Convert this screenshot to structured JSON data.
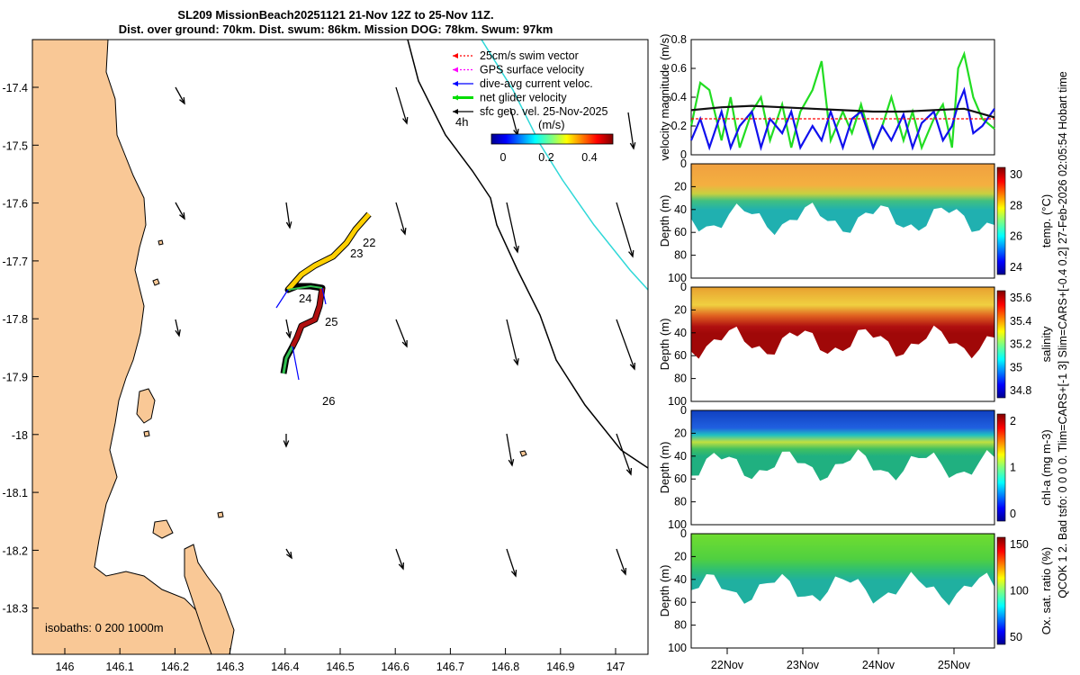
{
  "title": {
    "line1": "SL209 MissionBeach20251121 21-Nov 12Z to 25-Nov 11Z.",
    "line2": "Dist. over ground: 70km. Dist. swum: 86km. Mission DOG: 78km. Swum: 97km"
  },
  "side_note": "QCOK 1  2. Bad tsfo: 0  0  0  0. Tlim=CARS+[-1 3] Slim=CARS+[-0.4 0.2] 27-Feb-2026 02:05:54 Hobart time",
  "map": {
    "x_ticks": [
      "146",
      "146.1",
      "146.2",
      "146.3",
      "146.4",
      "146.5",
      "146.6",
      "146.7",
      "146.8",
      "146.9",
      "147"
    ],
    "y_ticks": [
      "-17.4",
      "-17.5",
      "-17.6",
      "-17.7",
      "-17.8",
      "-17.9",
      "-18",
      "-18.1",
      "-18.2",
      "-18.3"
    ],
    "legend": [
      {
        "label": "25cm/s swim vector",
        "color": "#ff0000"
      },
      {
        "label": "GPS surface velocity",
        "color": "#ff00ff"
      },
      {
        "label": "dive-avg current veloc.",
        "color": "#0000ff"
      },
      {
        "label": "net glider velocity",
        "color": "#00dd00"
      },
      {
        "label": "sfc geo. vel. 25-Nov-2025",
        "color": "#000000"
      }
    ],
    "legend_interval": "4h",
    "colorbar": {
      "unit": "(m/s)",
      "ticks": [
        "0",
        "0.2",
        "0.4"
      ]
    },
    "day_labels": [
      "22",
      "23",
      "24",
      "25",
      "26"
    ],
    "isobaths_label": "isobaths: 0   200  1000m",
    "land_color": "#f9c896"
  },
  "chart_data": [
    {
      "type": "line",
      "title": "",
      "xlabel": "",
      "ylabel": "velocity magnitude (m/s)",
      "ylim": [
        0,
        0.8
      ],
      "y_ticks": [
        "0",
        "0.2",
        "0.4",
        "0.6",
        "0.8"
      ],
      "series": [
        {
          "name": "net glider velocity",
          "color": "#22dd22",
          "x": [
            0,
            0.03,
            0.06,
            0.1,
            0.13,
            0.16,
            0.2,
            0.23,
            0.26,
            0.3,
            0.33,
            0.36,
            0.4,
            0.43,
            0.46,
            0.5,
            0.53,
            0.56,
            0.6,
            0.63,
            0.66,
            0.7,
            0.73,
            0.76,
            0.8,
            0.83,
            0.86,
            0.88,
            0.9,
            0.93,
            0.96,
            1.0
          ],
          "values": [
            0.2,
            0.5,
            0.45,
            0.1,
            0.4,
            0.05,
            0.3,
            0.4,
            0.1,
            0.35,
            0.05,
            0.3,
            0.45,
            0.65,
            0.1,
            0.3,
            0.15,
            0.35,
            0.05,
            0.2,
            0.4,
            0.1,
            0.3,
            0.05,
            0.25,
            0.35,
            0.05,
            0.6,
            0.7,
            0.4,
            0.25,
            0.18
          ]
        },
        {
          "name": "dive-avg current veloc.",
          "color": "#1010ee",
          "x": [
            0,
            0.03,
            0.06,
            0.1,
            0.13,
            0.16,
            0.2,
            0.23,
            0.26,
            0.3,
            0.33,
            0.36,
            0.4,
            0.43,
            0.46,
            0.5,
            0.53,
            0.56,
            0.6,
            0.63,
            0.66,
            0.7,
            0.73,
            0.76,
            0.8,
            0.83,
            0.86,
            0.88,
            0.9,
            0.93,
            0.96,
            1.0
          ],
          "values": [
            0.1,
            0.25,
            0.05,
            0.3,
            0.05,
            0.2,
            0.3,
            0.05,
            0.25,
            0.15,
            0.3,
            0.05,
            0.2,
            0.1,
            0.3,
            0.05,
            0.25,
            0.3,
            0.05,
            0.2,
            0.1,
            0.28,
            0.05,
            0.22,
            0.3,
            0.1,
            0.2,
            0.35,
            0.45,
            0.15,
            0.2,
            0.32
          ]
        },
        {
          "name": "sfc geo. vel.",
          "color": "#111111",
          "x": [
            0,
            0.1,
            0.2,
            0.3,
            0.4,
            0.5,
            0.6,
            0.7,
            0.8,
            0.9,
            1.0
          ],
          "values": [
            0.31,
            0.33,
            0.34,
            0.33,
            0.32,
            0.31,
            0.3,
            0.3,
            0.31,
            0.32,
            0.26
          ]
        },
        {
          "name": "25cm/s swim vector",
          "color": "#ff0000",
          "x": [
            0,
            1
          ],
          "values": [
            0.25,
            0.25
          ]
        }
      ]
    },
    {
      "type": "heatmap",
      "ylabel": "Depth (m)",
      "ylim": [
        100,
        0
      ],
      "y_ticks": [
        "0",
        "20",
        "40",
        "60",
        "80",
        "100"
      ],
      "colorbar_label": "temp. (°C)",
      "colorbar_ticks": [
        "24",
        "26",
        "28",
        "30"
      ]
    },
    {
      "type": "heatmap",
      "ylabel": "Depth (m)",
      "ylim": [
        100,
        0
      ],
      "y_ticks": [
        "0",
        "20",
        "40",
        "60",
        "80",
        "100"
      ],
      "colorbar_label": "salinity",
      "colorbar_ticks": [
        "34.8",
        "35",
        "35.2",
        "35.4",
        "35.6"
      ]
    },
    {
      "type": "heatmap",
      "ylabel": "Depth (m)",
      "ylim": [
        100,
        0
      ],
      "y_ticks": [
        "0",
        "20",
        "40",
        "60",
        "80",
        "100"
      ],
      "colorbar_label": "chl-a (mg m-3)",
      "colorbar_ticks": [
        "0",
        "1",
        "2"
      ]
    },
    {
      "type": "heatmap",
      "ylabel": "Depth (m)",
      "ylim": [
        100,
        0
      ],
      "y_ticks": [
        "0",
        "20",
        "40",
        "60",
        "80",
        "100"
      ],
      "colorbar_label": "Ox. sat. ratio (%)",
      "colorbar_ticks": [
        "50",
        "100",
        "150"
      ],
      "x_ticks": [
        "22Nov",
        "23Nov",
        "24Nov",
        "25Nov"
      ]
    }
  ]
}
